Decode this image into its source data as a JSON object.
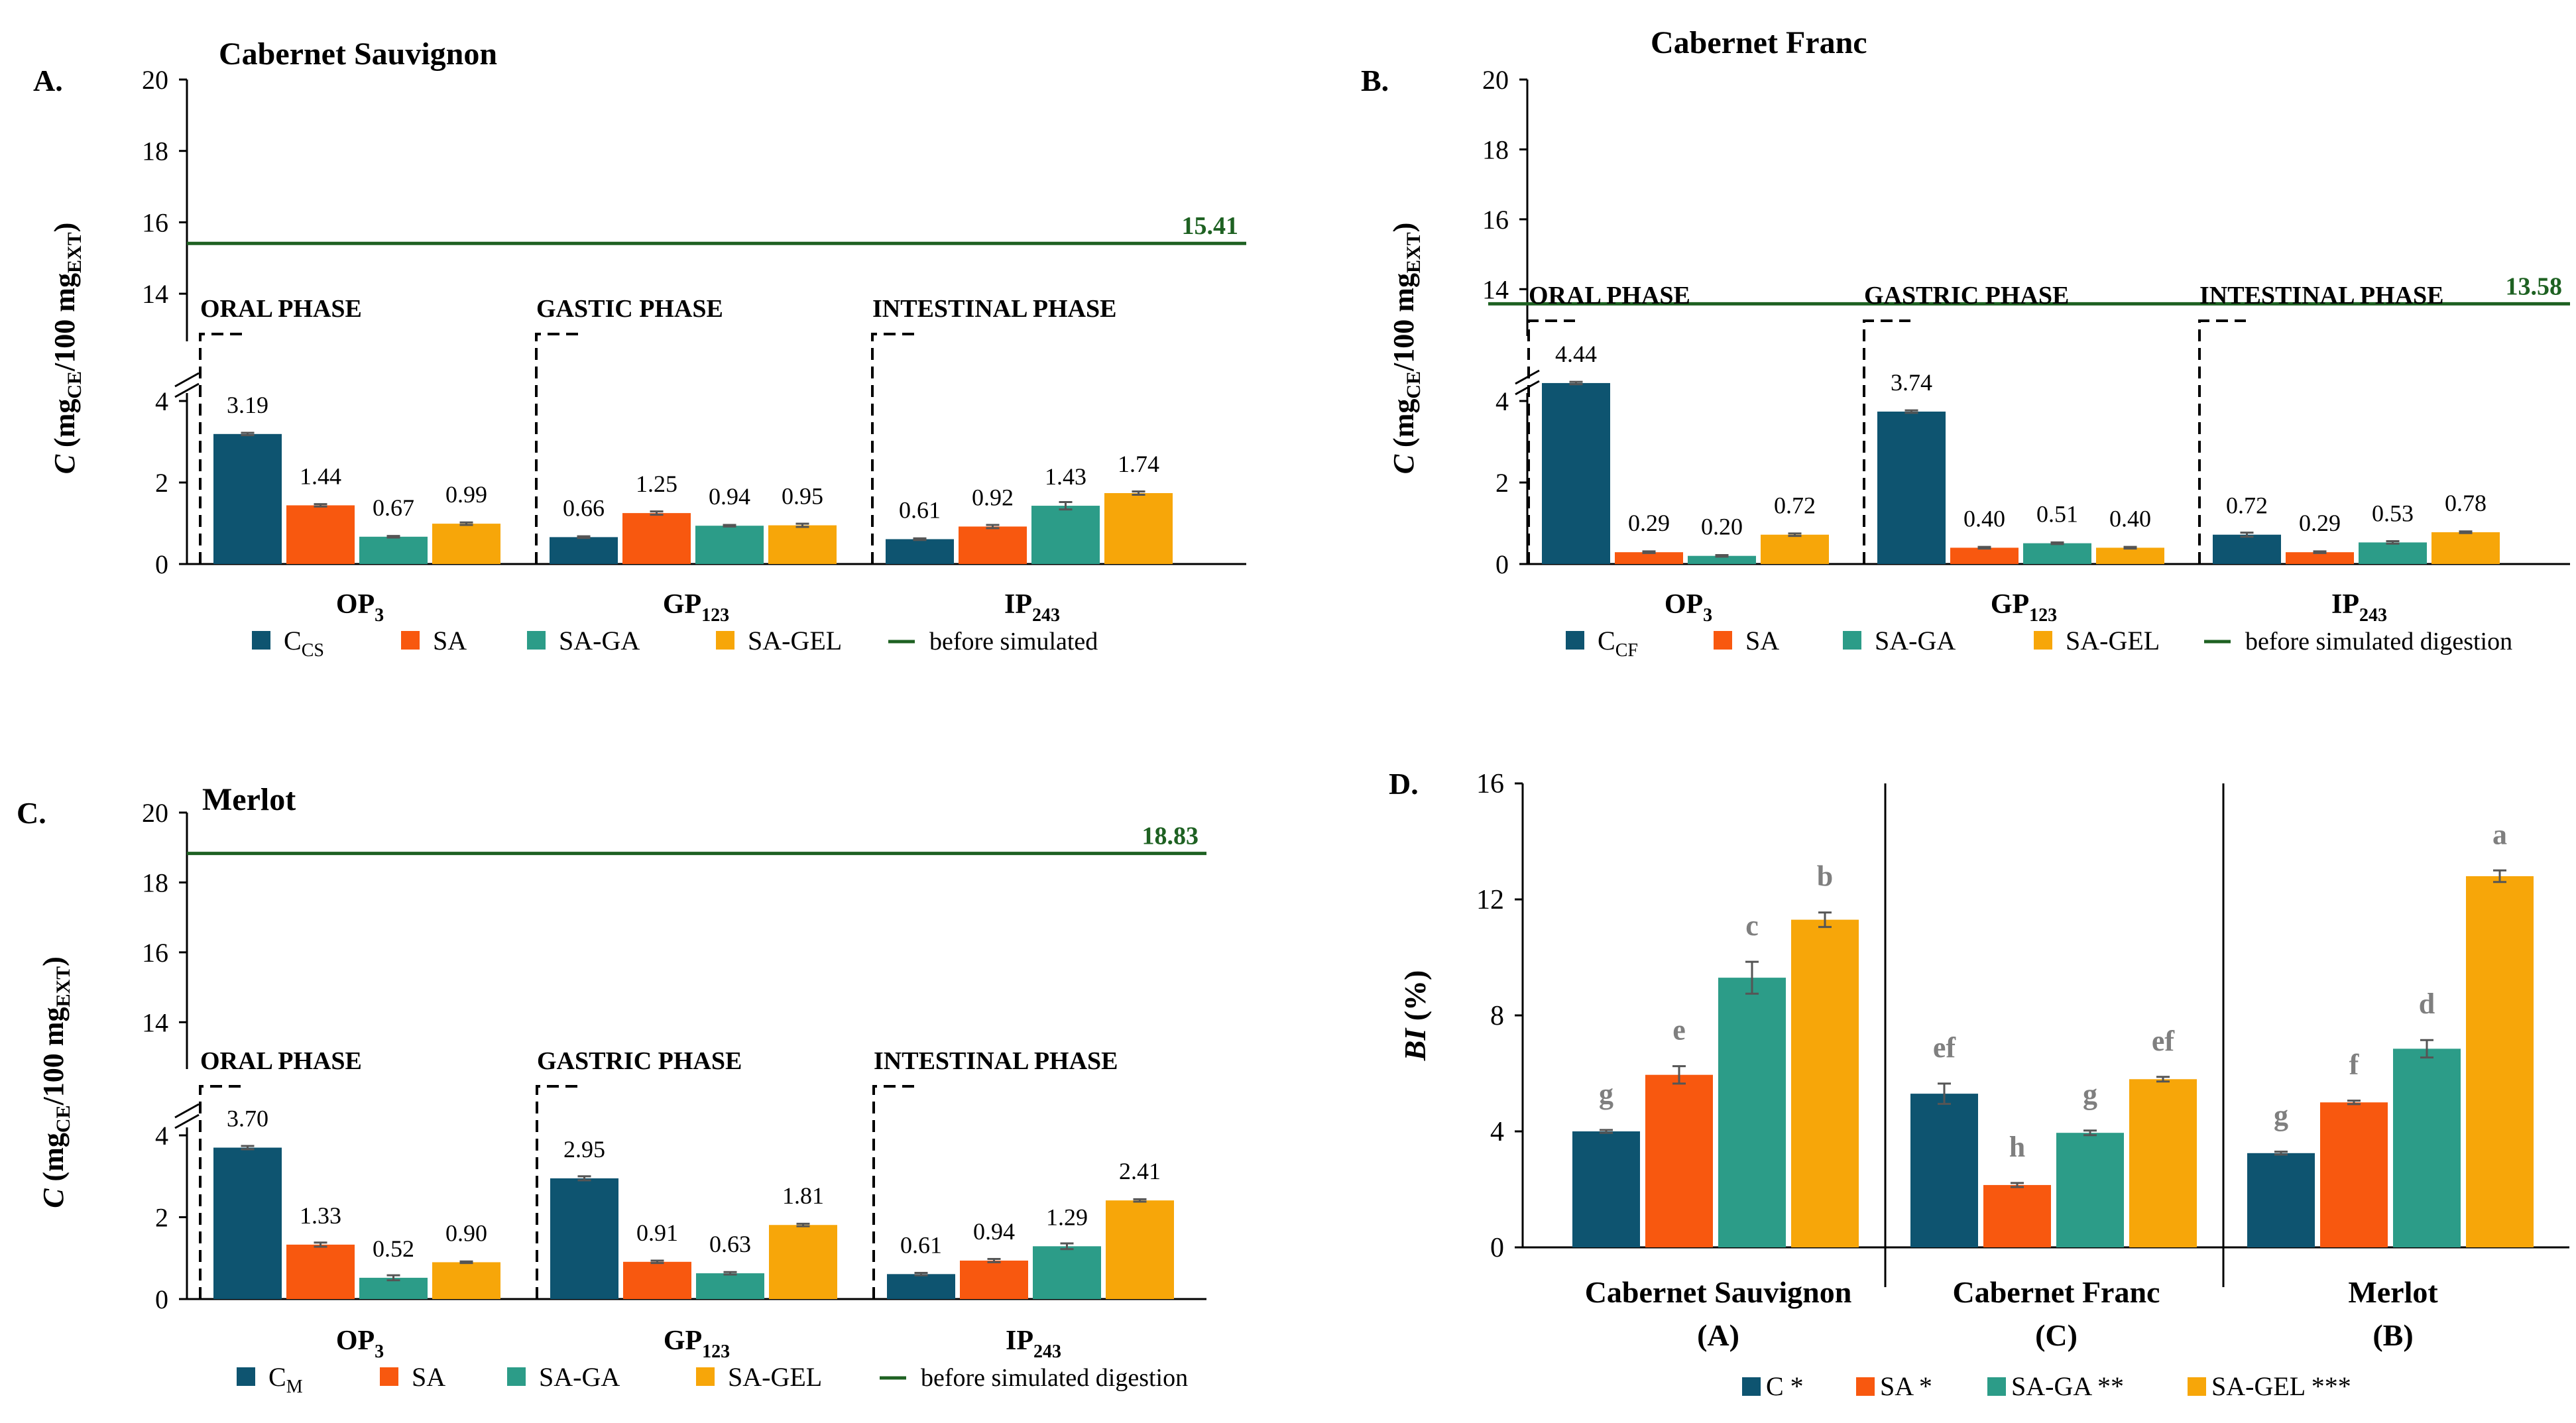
{
  "colors": {
    "c": "#0e5470",
    "sa": "#f8580f",
    "sa_ga": "#2c9c88",
    "sa_gel": "#f7a609",
    "line": "#1e6122",
    "axis": "#000000",
    "error": "#555555",
    "letter": "#7f7f7f"
  },
  "chart_data": [
    {
      "id": "A",
      "type": "bar",
      "panel_label": "A.",
      "title": "Cabernet Sauvignon",
      "ylabel": "C (mgCE/100 mgEXT)",
      "ylabel_parts": {
        "italic": "C",
        "open": " (mg",
        "sub1": "CE",
        "mid": "/100 mg",
        "sub2": "EXT",
        "close": ")"
      },
      "ylim_upper": [
        13,
        20
      ],
      "ylim_lower": [
        0,
        4
      ],
      "ticks_upper": [
        "14",
        "16",
        "18",
        "20"
      ],
      "ticks_lower": [
        "0",
        "2",
        "4"
      ],
      "categories": [
        {
          "name": "OP",
          "sub": "3",
          "phase_label": "ORAL PHASE"
        },
        {
          "name": "GP",
          "sub": "123",
          "phase_label": "GASTIC PHASE"
        },
        {
          "name": "IP",
          "sub": "243",
          "phase_label": "INTESTINAL PHASE"
        }
      ],
      "series": [
        {
          "name": "CCS",
          "label_main": "C",
          "label_sub": "CS",
          "values": [
            3.19,
            0.66,
            0.61
          ],
          "labels": [
            "3.19",
            "0.66",
            "0.61"
          ],
          "errors": [
            0.03,
            0.02,
            0.02
          ]
        },
        {
          "name": "SA",
          "values": [
            1.44,
            1.25,
            0.92
          ],
          "labels": [
            "1.44",
            "1.25",
            "0.92"
          ],
          "errors": [
            0.03,
            0.04,
            0.04
          ]
        },
        {
          "name": "SA-GA",
          "values": [
            0.67,
            0.94,
            1.43
          ],
          "labels": [
            "0.67",
            "0.94",
            "1.43"
          ],
          "errors": [
            0.02,
            0.02,
            0.09
          ]
        },
        {
          "name": "SA-GEL",
          "values": [
            0.99,
            0.95,
            1.74
          ],
          "labels": [
            "0.99",
            "0.95",
            "1.74"
          ],
          "errors": [
            0.03,
            0.04,
            0.04
          ]
        }
      ],
      "reference_line": {
        "value": 15.41,
        "label": "15.41",
        "legend": "before simulated"
      }
    },
    {
      "id": "B",
      "type": "bar",
      "panel_label": "B.",
      "title": "Cabernet Franc",
      "ylabel": "C (mgCE/100 mgEXT)",
      "ylabel_parts": {
        "italic": "C",
        "open": " (mg",
        "sub1": "CE",
        "mid": "/100 mg",
        "sub2": "EXT",
        "close": ")"
      },
      "ylim_upper": [
        13,
        20
      ],
      "ylim_lower": [
        0,
        4
      ],
      "ticks_upper": [
        "14",
        "16",
        "18",
        "20"
      ],
      "ticks_lower": [
        "0",
        "2",
        "4"
      ],
      "categories": [
        {
          "name": "OP",
          "sub": "3",
          "phase_label": "ORAL PHASE"
        },
        {
          "name": "GP",
          "sub": "123",
          "phase_label": "GASTRIC PHASE"
        },
        {
          "name": "IP",
          "sub": "243",
          "phase_label": "INTESTINAL PHASE"
        }
      ],
      "series": [
        {
          "name": "CCF",
          "label_main": "C",
          "label_sub": "CF",
          "values": [
            4.44,
            3.74,
            0.72
          ],
          "labels": [
            "4.44",
            "3.74",
            "0.72"
          ],
          "errors": [
            0.03,
            0.03,
            0.05
          ]
        },
        {
          "name": "SA",
          "values": [
            0.29,
            0.4,
            0.29
          ],
          "labels": [
            "0.29",
            "0.40",
            "0.29"
          ],
          "errors": [
            0.02,
            0.02,
            0.02
          ]
        },
        {
          "name": "SA-GA",
          "values": [
            0.2,
            0.51,
            0.53
          ],
          "labels": [
            "0.20",
            "0.51",
            "0.53"
          ],
          "errors": [
            0.02,
            0.02,
            0.03
          ]
        },
        {
          "name": "SA-GEL",
          "values": [
            0.72,
            0.4,
            0.78
          ],
          "labels": [
            "0.72",
            "0.40",
            "0.78"
          ],
          "errors": [
            0.03,
            0.02,
            0.02
          ]
        }
      ],
      "reference_line": {
        "value": 13.58,
        "label": "13.58",
        "legend": "before simulated digestion"
      }
    },
    {
      "id": "C",
      "type": "bar",
      "panel_label": "C.",
      "title": "Merlot",
      "ylabel": "C (mgCE/100 mgEXT)",
      "ylabel_parts": {
        "italic": "C",
        "open": " (mg",
        "sub1": "CE",
        "mid": "/100 mg",
        "sub2": "EXT",
        "close": ")"
      },
      "ylim_upper": [
        13,
        20
      ],
      "ylim_lower": [
        0,
        4
      ],
      "ticks_upper": [
        "14",
        "16",
        "18",
        "20"
      ],
      "ticks_lower": [
        "0",
        "2",
        "4"
      ],
      "categories": [
        {
          "name": "OP",
          "sub": "3",
          "phase_label": "ORAL PHASE"
        },
        {
          "name": "GP",
          "sub": "123",
          "phase_label": "GASTRIC PHASE"
        },
        {
          "name": "IP",
          "sub": "243",
          "phase_label": "INTESTINAL PHASE"
        }
      ],
      "series": [
        {
          "name": "CM",
          "label_main": "C",
          "label_sub": "M",
          "values": [
            3.7,
            2.95,
            0.61
          ],
          "labels": [
            "3.70",
            "2.95",
            "0.61"
          ],
          "errors": [
            0.04,
            0.05,
            0.03
          ]
        },
        {
          "name": "SA",
          "values": [
            1.33,
            0.91,
            0.94
          ],
          "labels": [
            "1.33",
            "0.91",
            "0.94"
          ],
          "errors": [
            0.05,
            0.03,
            0.04
          ]
        },
        {
          "name": "SA-GA",
          "values": [
            0.52,
            0.63,
            1.29
          ],
          "labels": [
            "0.52",
            "0.63",
            "1.29"
          ],
          "errors": [
            0.06,
            0.03,
            0.07
          ]
        },
        {
          "name": "SA-GEL",
          "values": [
            0.9,
            1.81,
            2.41
          ],
          "labels": [
            "0.90",
            "1.81",
            "2.41"
          ],
          "errors": [
            0.02,
            0.03,
            0.03
          ]
        }
      ],
      "reference_line": {
        "value": 18.83,
        "label": "18.83",
        "legend": "before simulated digestion"
      }
    },
    {
      "id": "D",
      "type": "bar",
      "panel_label": "D.",
      "ylabel_italic": "BI",
      "ylabel_rest": " (%)",
      "ylim": [
        0,
        16
      ],
      "ticks": [
        "0",
        "4",
        "8",
        "12",
        "16"
      ],
      "categories": [
        {
          "name": "Cabernet Sauvignon",
          "code": "(A)"
        },
        {
          "name": "Cabernet Franc",
          "code": "(C)"
        },
        {
          "name": "Merlot",
          "code": "(B)"
        }
      ],
      "series": [
        {
          "name": "C *",
          "values": [
            4.0,
            5.3,
            3.25
          ],
          "errors": [
            0.05,
            0.35,
            0.05
          ],
          "letters": [
            "g",
            "ef",
            "g"
          ]
        },
        {
          "name": "SA *",
          "values": [
            5.95,
            2.15,
            5.0
          ],
          "errors": [
            0.3,
            0.07,
            0.06
          ],
          "letters": [
            "e",
            "h",
            "f"
          ]
        },
        {
          "name": "SA-GA **",
          "values": [
            9.3,
            3.95,
            6.85
          ],
          "errors": [
            0.55,
            0.08,
            0.3
          ],
          "letters": [
            "c",
            "g",
            "d"
          ]
        },
        {
          "name": "SA-GEL ***",
          "values": [
            11.3,
            5.8,
            12.8
          ],
          "errors": [
            0.25,
            0.08,
            0.2
          ],
          "letters": [
            "b",
            "ef",
            "a"
          ]
        }
      ]
    }
  ]
}
